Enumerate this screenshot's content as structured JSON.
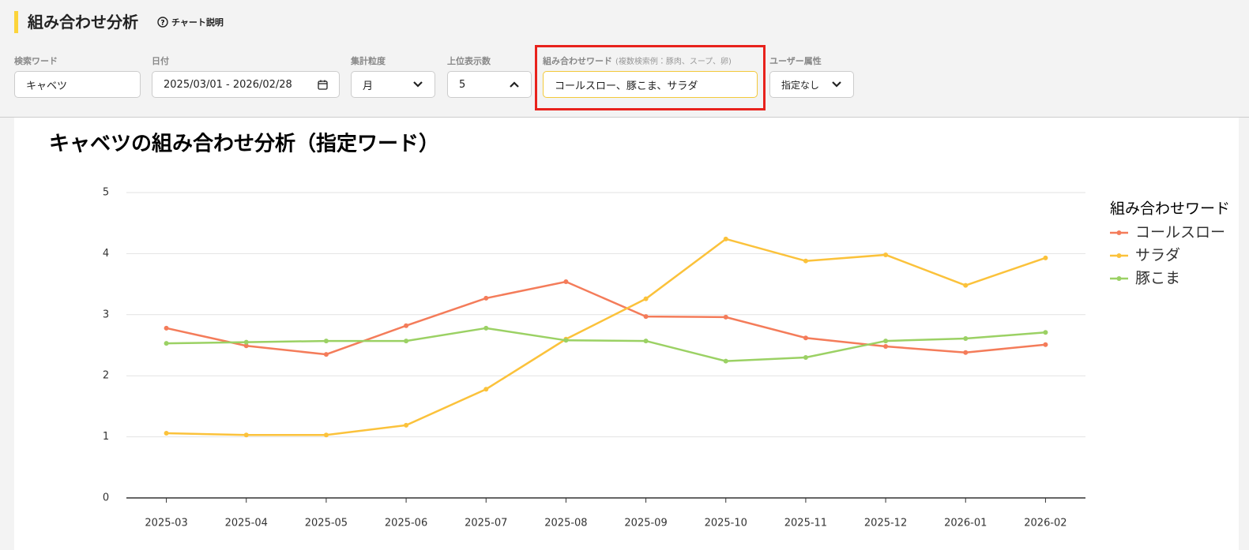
{
  "header": {
    "title": "組み合わせ分析",
    "help": "チャート説明"
  },
  "filters": [
    {
      "label": "検索ワード",
      "value": "キャベツ"
    },
    {
      "label": "日付",
      "value": "2025/03/01 - 2026/02/28"
    },
    {
      "label": "集計粒度",
      "value": "月"
    },
    {
      "label": "上位表示数",
      "value": "5"
    },
    {
      "label": "組み合わせワード",
      "hint": "(複数検索例：豚肉、スープ、卵)",
      "value": "コールスロー、豚こま、サラダ"
    },
    {
      "label": "ユーザー属性",
      "value": "指定なし"
    }
  ],
  "chart_data": {
    "type": "line",
    "title": "キャベツの組み合わせ分析（指定ワード）",
    "legend_title": "組み合わせワード",
    "categories": [
      "2025-03",
      "2025-04",
      "2025-05",
      "2025-06",
      "2025-07",
      "2025-08",
      "2025-09",
      "2025-10",
      "2025-11",
      "2025-12",
      "2026-01",
      "2026-02"
    ],
    "series": [
      {
        "name": "コールスロー",
        "color": "#f47c5a",
        "values": [
          2.78,
          2.49,
          2.35,
          2.82,
          3.27,
          3.54,
          2.97,
          2.96,
          2.62,
          2.48,
          2.38,
          2.51
        ]
      },
      {
        "name": "サラダ",
        "color": "#fbc23b",
        "values": [
          1.06,
          1.03,
          1.03,
          1.19,
          1.78,
          2.6,
          3.26,
          4.24,
          3.88,
          3.98,
          3.48,
          3.93
        ]
      },
      {
        "name": "豚こま",
        "color": "#9bd164",
        "values": [
          2.53,
          2.55,
          2.57,
          2.57,
          2.78,
          2.58,
          2.57,
          2.24,
          2.3,
          2.57,
          2.61,
          2.71
        ]
      }
    ],
    "ylim": [
      0,
      5
    ],
    "yticks": [
      0,
      1,
      2,
      3,
      4,
      5
    ],
    "grid": true,
    "legend": "right"
  }
}
